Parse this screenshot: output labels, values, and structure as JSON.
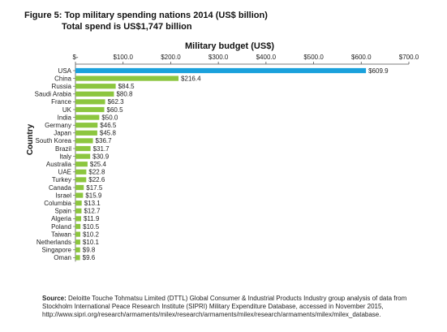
{
  "figure": {
    "title_line1": "Figure 5: Top military spending nations 2014 (US$ billion)",
    "title_line2": "Total spend is US$1,747 billion"
  },
  "chart_data": {
    "type": "bar",
    "orientation": "horizontal",
    "title": "Military budget (US$)",
    "xlabel": "Military budget (US$)",
    "ylabel": "Country",
    "xlim": [
      0,
      700
    ],
    "x_ticks": [
      0,
      100,
      200,
      300,
      400,
      500,
      600,
      700
    ],
    "x_tick_labels": [
      "$-",
      "$100.0",
      "$200.0",
      "$300.0",
      "$400.0",
      "$500.0",
      "$600.0",
      "$700.0"
    ],
    "axis_position": "top",
    "grid": false,
    "categories": [
      "USA",
      "China",
      "Russia",
      "Saudi Arabia",
      "France",
      "UK",
      "India",
      "Germany",
      "Japan",
      "South Korea",
      "Brazil",
      "Italy",
      "Australia",
      "UAE",
      "Turkey",
      "Canada",
      "Israel",
      "Columbia",
      "Spain",
      "Algeria",
      "Poland",
      "Taiwan",
      "Netherlands",
      "Singapore",
      "Oman"
    ],
    "values": [
      609.9,
      216.4,
      84.5,
      80.8,
      62.3,
      60.5,
      50.0,
      46.5,
      45.8,
      36.7,
      31.7,
      30.9,
      25.4,
      22.8,
      22.6,
      17.5,
      15.9,
      13.1,
      12.7,
      11.9,
      10.5,
      10.2,
      10.1,
      9.8,
      9.6
    ],
    "value_labels": [
      "$609.9",
      "$216.4",
      "$84.5",
      "$80.8",
      "$62.3",
      "$60.5",
      "$50.0",
      "$46.5",
      "$45.8",
      "$36.7",
      "$31.7",
      "$30.9",
      "$25.4",
      "$22.8",
      "$22.6",
      "$17.5",
      "$15.9",
      "$13.1",
      "$12.7",
      "$11.9",
      "$10.5",
      "$10.2",
      "$10.1",
      "$9.8",
      "$9.6"
    ],
    "colors": {
      "highlight": "#1ba1dc",
      "default": "#8cc63f",
      "axis": "#555555"
    },
    "highlight_index": 0
  },
  "source": {
    "label": "Source:",
    "text": "Deloitte Touche Tohmatsu Limited (DTTL) Global Consumer & Industrial Products Industry group analysis of data from Stockholm International Peace Research Institute (SIPRI) Military Expenditure Database, accessed in November 2015, http://www.sipri.org/research/armaments/milex/research/armaments/milex/research/armaments/milex/milex_database."
  }
}
